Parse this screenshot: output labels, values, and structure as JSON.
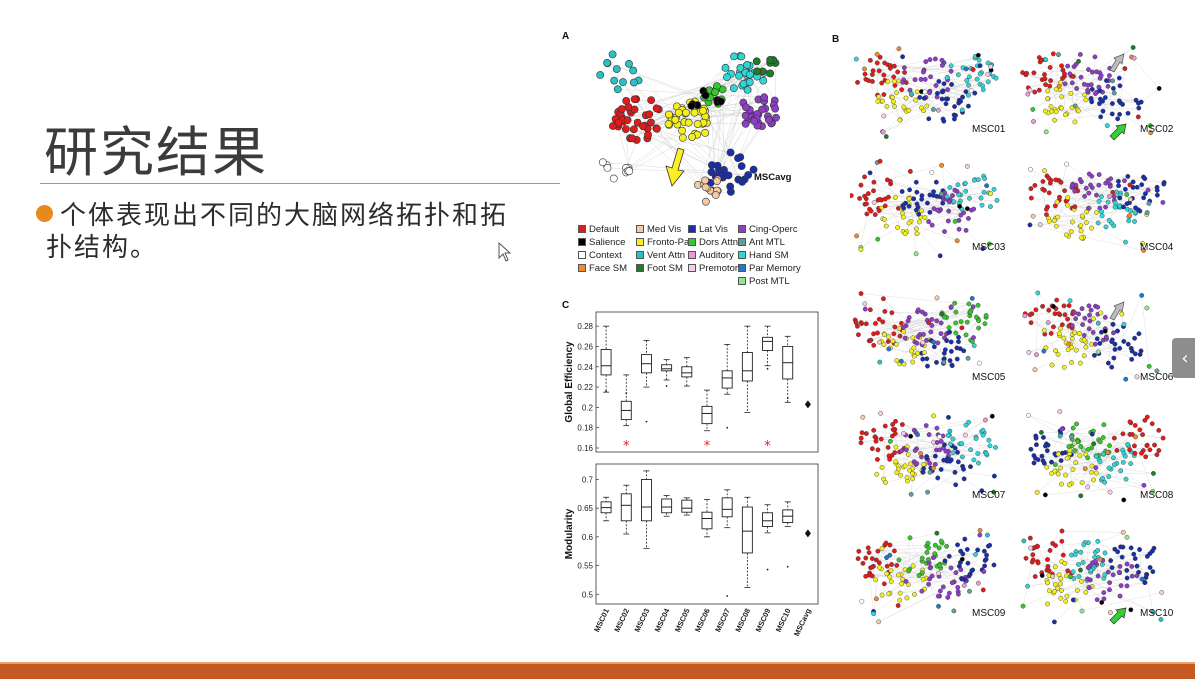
{
  "slide": {
    "title": "研究结果",
    "bullet": "个体表现出不同的大脑网络拓扑和拓扑结构。"
  },
  "figure": {
    "panel_a": {
      "letter": "A",
      "label": "MSCavg",
      "arrow_color": "#ffee22"
    },
    "panel_b": {
      "letter": "B",
      "subjects": [
        "MSC01",
        "MSC02",
        "MSC03",
        "MSC04",
        "MSC05",
        "MSC06",
        "MSC07",
        "MSC08",
        "MSC09",
        "MSC10"
      ]
    },
    "panel_c": {
      "letter": "C"
    },
    "legend": [
      {
        "label": "Default",
        "color": "#e11b1b"
      },
      {
        "label": "Salience",
        "color": "#000000"
      },
      {
        "label": "Context",
        "color": "#ffffff"
      },
      {
        "label": "Face SM",
        "color": "#f08a2c"
      },
      {
        "label": "Med Vis",
        "color": "#f4c9a6"
      },
      {
        "label": "Fronto-Par",
        "color": "#f4f01e"
      },
      {
        "label": "Vent Attn",
        "color": "#26c2c4"
      },
      {
        "label": "Foot SM",
        "color": "#1f7a2a"
      },
      {
        "label": "Lat Vis",
        "color": "#1a2ea8"
      },
      {
        "label": "Dors Attn",
        "color": "#34c92a"
      },
      {
        "label": "Auditory",
        "color": "#e89ad6"
      },
      {
        "label": "Premotor",
        "color": "#f7cde6"
      },
      {
        "label": "Cing-Operc",
        "color": "#8c3ec4"
      },
      {
        "label": "Ant MTL",
        "color": "#5f9ea0"
      },
      {
        "label": "Hand SM",
        "color": "#2fd6d6"
      },
      {
        "label": "Par Memory",
        "color": "#2277cc"
      },
      {
        "label": "Post MTL",
        "color": "#8ee68e"
      }
    ],
    "markers": {
      "sig_color": "#e02020",
      "sig_symbol": "*"
    }
  },
  "chart_data": [
    {
      "type": "box",
      "ylabel": "Global Efficiency",
      "ylim": [
        0.16,
        0.29
      ],
      "yticks": [
        0.16,
        0.18,
        0.2,
        0.22,
        0.24,
        0.26,
        0.28
      ],
      "categories": [
        "MSC01",
        "MSC02",
        "MSC03",
        "MSC04",
        "MSC05",
        "MSC06",
        "MSC07",
        "MSC08",
        "MSC09",
        "MSC10",
        "MSCavg"
      ],
      "boxes": [
        {
          "min": 0.215,
          "q1": 0.232,
          "median": 0.241,
          "q3": 0.257,
          "max": 0.28
        },
        {
          "min": 0.182,
          "q1": 0.188,
          "median": 0.197,
          "q3": 0.206,
          "max": 0.232
        },
        {
          "min": 0.22,
          "q1": 0.234,
          "median": 0.243,
          "q3": 0.252,
          "max": 0.266
        },
        {
          "min": 0.227,
          "q1": 0.236,
          "median": 0.238,
          "q3": 0.242,
          "max": 0.247
        },
        {
          "min": 0.221,
          "q1": 0.23,
          "median": 0.234,
          "q3": 0.24,
          "max": 0.249
        },
        {
          "min": 0.177,
          "q1": 0.184,
          "median": 0.194,
          "q3": 0.201,
          "max": 0.217
        },
        {
          "min": 0.213,
          "q1": 0.219,
          "median": 0.229,
          "q3": 0.236,
          "max": 0.262
        },
        {
          "min": 0.195,
          "q1": 0.226,
          "median": 0.236,
          "q3": 0.254,
          "max": 0.28
        },
        {
          "min": 0.241,
          "q1": 0.256,
          "median": 0.265,
          "q3": 0.269,
          "max": 0.28
        },
        {
          "min": 0.205,
          "q1": 0.228,
          "median": 0.244,
          "q3": 0.26,
          "max": 0.27
        },
        null
      ],
      "outliers": [
        [
          0,
          0.216
        ],
        [
          1,
          0.214
        ],
        [
          2,
          0.186
        ],
        [
          3,
          0.221
        ],
        [
          6,
          0.18
        ],
        [
          8,
          0.238
        ],
        [
          9,
          0.209
        ]
      ],
      "mean_marker": {
        "category": "MSCavg",
        "value": 0.203
      },
      "significant": [
        "MSC02",
        "MSC06",
        "MSC09"
      ]
    },
    {
      "type": "box",
      "ylabel": "Modularity",
      "ylim": [
        0.49,
        0.72
      ],
      "yticks": [
        0.5,
        0.55,
        0.6,
        0.65,
        0.7
      ],
      "categories": [
        "MSC01",
        "MSC02",
        "MSC03",
        "MSC04",
        "MSC05",
        "MSC06",
        "MSC07",
        "MSC08",
        "MSC09",
        "MSC10",
        "MSCavg"
      ],
      "boxes": [
        {
          "min": 0.628,
          "q1": 0.642,
          "median": 0.651,
          "q3": 0.661,
          "max": 0.669
        },
        {
          "min": 0.605,
          "q1": 0.628,
          "median": 0.655,
          "q3": 0.675,
          "max": 0.69
        },
        {
          "min": 0.58,
          "q1": 0.628,
          "median": 0.652,
          "q3": 0.7,
          "max": 0.715
        },
        {
          "min": 0.636,
          "q1": 0.642,
          "median": 0.652,
          "q3": 0.666,
          "max": 0.672
        },
        {
          "min": 0.638,
          "q1": 0.643,
          "median": 0.65,
          "q3": 0.664,
          "max": 0.668
        },
        {
          "min": 0.6,
          "q1": 0.614,
          "median": 0.632,
          "q3": 0.643,
          "max": 0.665
        },
        {
          "min": 0.616,
          "q1": 0.635,
          "median": 0.648,
          "q3": 0.668,
          "max": 0.682
        },
        {
          "min": 0.512,
          "q1": 0.572,
          "median": 0.61,
          "q3": 0.652,
          "max": 0.669
        },
        {
          "min": 0.607,
          "q1": 0.618,
          "median": 0.628,
          "q3": 0.642,
          "max": 0.656
        },
        {
          "min": 0.618,
          "q1": 0.625,
          "median": 0.636,
          "q3": 0.647,
          "max": 0.661
        },
        null
      ],
      "outliers": [
        [
          6,
          0.497
        ],
        [
          8,
          0.543
        ],
        [
          9,
          0.548
        ]
      ],
      "mean_marker": {
        "category": "MSCavg",
        "value": 0.606
      },
      "significant": []
    }
  ]
}
